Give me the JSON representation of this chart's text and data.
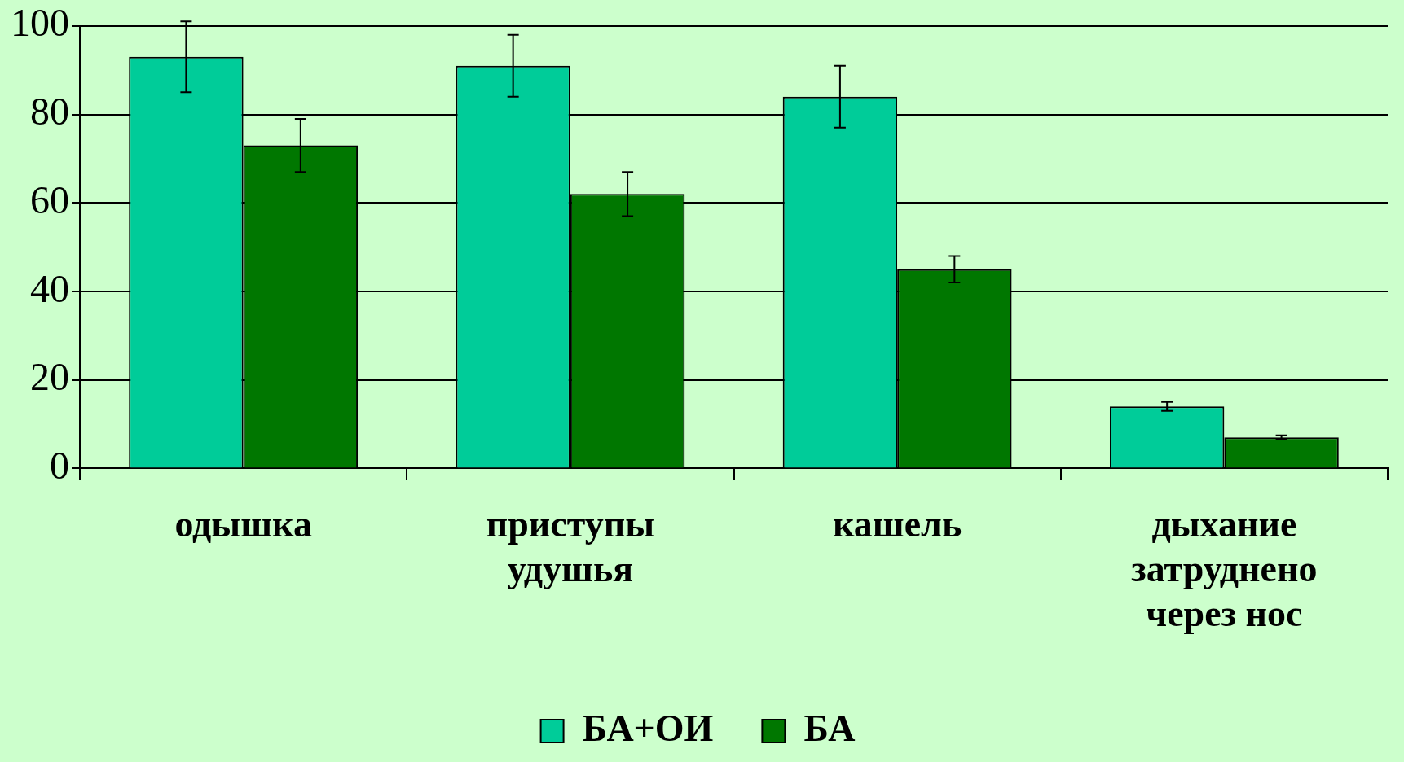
{
  "chart_data": {
    "type": "bar",
    "categories": [
      "одышка",
      "приступы удушья",
      "кашель",
      "дыхание затруднено через нос"
    ],
    "series": [
      {
        "name": "БА+ОИ",
        "color": "#00cc99",
        "values": [
          93,
          91,
          84,
          14
        ],
        "errors": [
          8,
          7,
          7,
          1
        ]
      },
      {
        "name": "БА",
        "color": "#007700",
        "values": [
          73,
          62,
          45,
          7
        ],
        "errors": [
          6,
          5,
          3,
          0.5
        ]
      }
    ],
    "ylim": [
      0,
      100
    ],
    "yticks": [
      0,
      20,
      40,
      60,
      80,
      100
    ],
    "grid": "y",
    "legend": "bottom"
  }
}
